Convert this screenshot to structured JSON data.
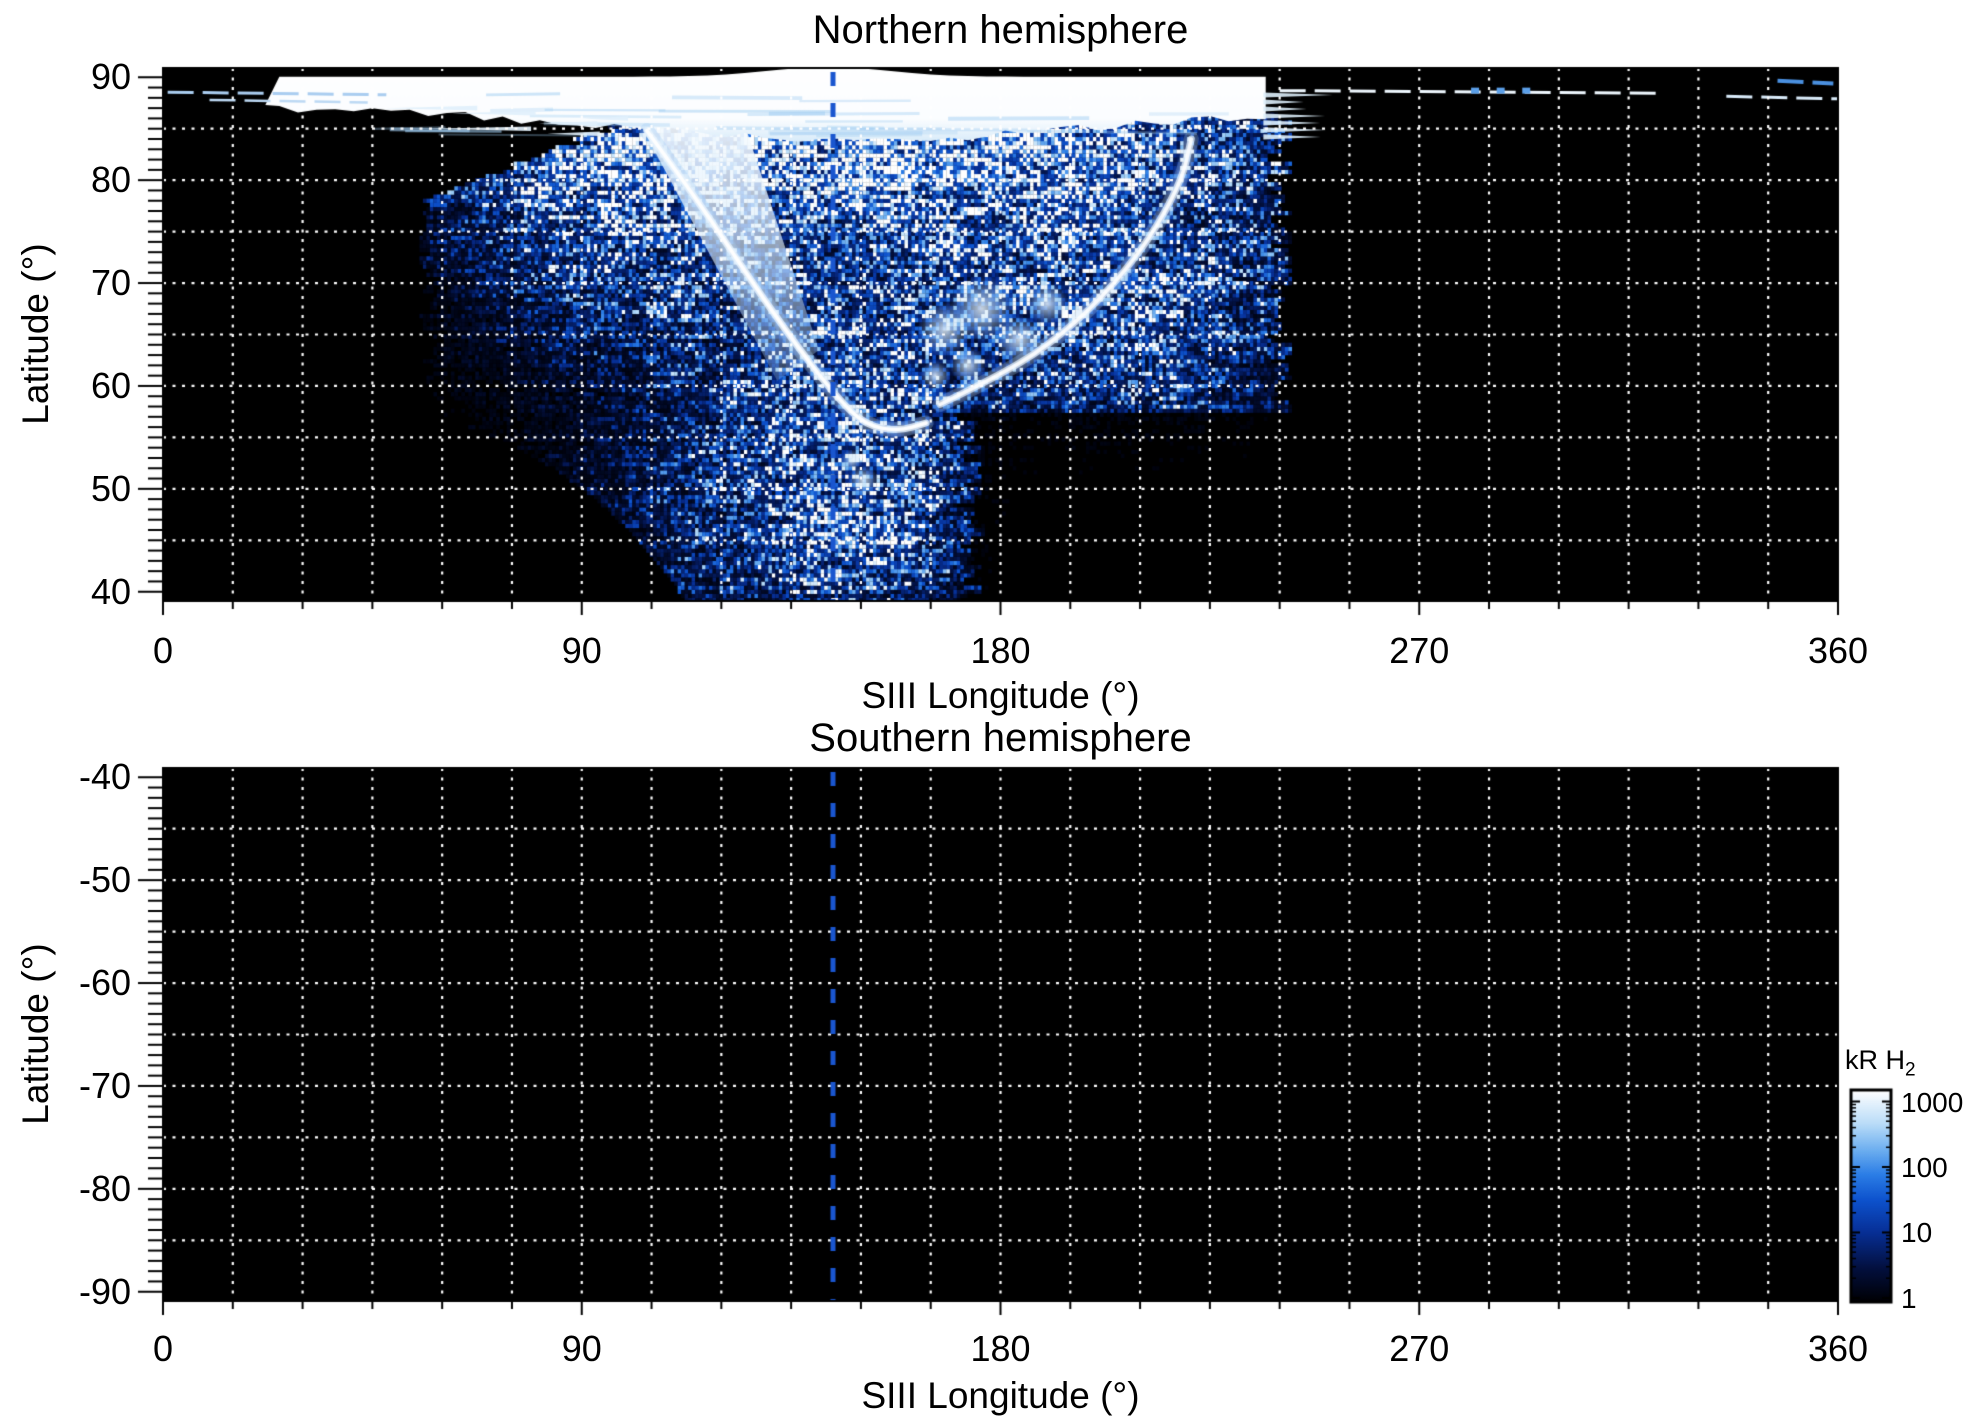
{
  "chart_data": [
    {
      "type": "heatmap",
      "title": "Northern hemisphere",
      "xlabel": "SIII Longitude (°)",
      "ylabel": "Latitude (°)",
      "xlim": [
        0,
        360
      ],
      "ylim": [
        40,
        90
      ],
      "x_ticks": [
        "0",
        "90",
        "180",
        "270",
        "360"
      ],
      "x_tick_values": [
        0,
        90,
        180,
        270,
        360
      ],
      "y_ticks": [
        "90",
        "80",
        "70",
        "60",
        "50",
        "40"
      ],
      "y_tick_values": [
        90,
        80,
        70,
        60,
        50,
        40
      ],
      "grid": {
        "x_step_deg": 15,
        "y_step_deg": 5,
        "style": "dotted",
        "color": "#ffffff"
      },
      "marker_line": {
        "longitude": 144,
        "style": "dashed",
        "color": "#1a56cf"
      },
      "background_value_kR": 1,
      "data_note": "Diffuse H2 auroral emission between ~55° and ~237° longitude and ~40°-86° latitude; saturated white polar-cap band above ~84° latitude (lon ~25°-237°); bright main-oval arc sweeping from (~104°, 85°) down to (~152°, 56°) and a second arc rising to (~220°, 80°); black data void at lower left",
      "aurora_features": {
        "diffuse_lobes": [
          [
            150,
            84,
            60,
            5.5,
            0.95
          ],
          [
            190,
            71,
            40,
            9,
            0.5
          ],
          [
            97,
            75,
            22,
            8,
            0.45
          ],
          [
            140,
            55,
            22,
            11,
            0.42
          ],
          [
            212,
            62,
            18,
            7,
            0.25
          ],
          [
            125,
            45,
            30,
            8,
            0.18
          ],
          [
            152,
            46,
            14,
            8,
            0.3
          ]
        ],
        "void_circle": {
          "lon": 40,
          "lat": 10,
          "lat_scale": 1.9,
          "radius": 91
        },
        "left_edge_lat_base": 55,
        "right_edge_lon": 237,
        "main_arc": [
          [
            104,
            84.8
          ],
          [
            115,
            78
          ],
          [
            126,
            70.5
          ],
          [
            136,
            64
          ],
          [
            145,
            58.8
          ],
          [
            151,
            56.2
          ],
          [
            158,
            55.6
          ],
          [
            164,
            56.4
          ]
        ],
        "secondary_arc": [
          [
            167,
            58.2
          ],
          [
            178,
            60.6
          ],
          [
            190,
            63.8
          ],
          [
            202,
            68.6
          ],
          [
            212,
            74.2
          ],
          [
            219,
            80
          ],
          [
            221,
            84
          ]
        ],
        "bright_blobs": [
          [
            168,
            65.5,
            9
          ],
          [
            176,
            67.5,
            11
          ],
          [
            184,
            64.5,
            8
          ],
          [
            173,
            62,
            6
          ],
          [
            190,
            68,
            7
          ],
          [
            166,
            61,
            5
          ],
          [
            150.5,
            50.8,
            5
          ],
          [
            148,
            52.8,
            3.5
          ]
        ],
        "polar_cap": {
          "lon_start": 22,
          "lon_end": 237,
          "low_base": 87.2,
          "dip": 3.2,
          "dip_center": 150,
          "dip_sigma": 55,
          "top_base": 90.05,
          "top_bump_center": 143,
          "top_bump_sigma": 13
        },
        "funnel_wedge": [
          [
            101,
            86.8
          ],
          [
            124,
            86.8
          ],
          [
            141,
            63.5
          ],
          [
            132,
            60.5
          ]
        ],
        "streaks": [
          {
            "lat": 88.55,
            "lon0": 1,
            "lon1": 48,
            "color": "#aacdf0",
            "w": 3
          },
          {
            "lat": 87.8,
            "lon0": 10,
            "lon1": 44,
            "color": "#bdd9f4",
            "w": 2.5
          },
          {
            "lat": 88.7,
            "lon0": 240,
            "lon1": 322,
            "color": "#eef7fe",
            "w": 3
          },
          {
            "lat": 88.15,
            "lon0": 336,
            "lon1": 360,
            "color": "#d9ebfa",
            "w": 3
          },
          {
            "lat": 89.65,
            "lon0": 347,
            "lon1": 359,
            "color": "#4a90e0",
            "w": 4
          }
        ],
        "dots": [
          [
            282,
            88.7
          ],
          [
            287.5,
            88.7
          ],
          [
            293,
            88.7
          ]
        ]
      }
    },
    {
      "type": "heatmap",
      "title": "Southern hemisphere",
      "xlabel": "SIII Longitude (°)",
      "ylabel": "Latitude (°)",
      "xlim": [
        0,
        360
      ],
      "ylim": [
        -90,
        -40
      ],
      "x_ticks": [
        "0",
        "90",
        "180",
        "270",
        "360"
      ],
      "x_tick_values": [
        0,
        90,
        180,
        270,
        360
      ],
      "y_ticks": [
        "-40",
        "-50",
        "-60",
        "-70",
        "-80",
        "-90"
      ],
      "y_tick_values": [
        -40,
        -50,
        -60,
        -70,
        -80,
        -90
      ],
      "grid": {
        "x_step_deg": 15,
        "y_step_deg": 5,
        "style": "dotted",
        "color": "#ffffff"
      },
      "marker_line": {
        "longitude": 144,
        "style": "dashed",
        "color": "#1a56cf"
      },
      "background_value_kR": 1,
      "data_note": "No auroral emission visible; entire map at background level (~1 kR, black)"
    }
  ],
  "colorbar": {
    "title": "kR H",
    "subscript": "2",
    "scale": "log",
    "ticks": [
      "1000",
      "100",
      "10",
      "1"
    ],
    "tick_values": [
      1000,
      100,
      10,
      1
    ],
    "range": [
      1,
      1000
    ],
    "colors": [
      [
        0.0,
        "#000003"
      ],
      [
        0.16,
        "#03103f"
      ],
      [
        0.33,
        "#072f96"
      ],
      [
        0.48,
        "#0d52cd"
      ],
      [
        0.6,
        "#2b7de6"
      ],
      [
        0.72,
        "#6fb0f0"
      ],
      [
        0.84,
        "#b9dcf8"
      ],
      [
        1.0,
        "#ffffff"
      ]
    ]
  }
}
